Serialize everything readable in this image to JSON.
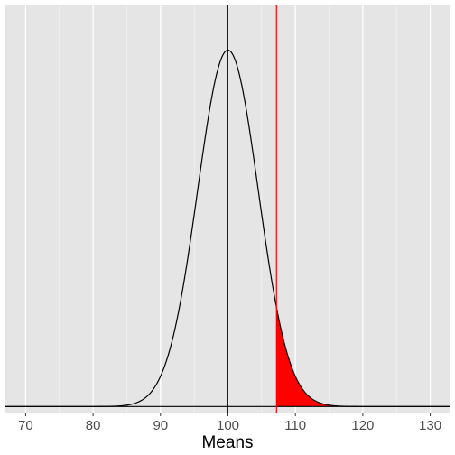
{
  "chart_data": {
    "type": "area",
    "xlabel": "Means",
    "ylabel": "",
    "xlim": [
      67,
      133
    ],
    "ylim": [
      -0.0015,
      0.1
    ],
    "x_ticks": [
      70,
      80,
      90,
      100,
      110,
      120,
      130
    ],
    "x_tick_labels": [
      "70",
      "80",
      "90",
      "100",
      "110",
      "120",
      "130"
    ],
    "grid": true,
    "distribution": {
      "name": "normal",
      "mean": 100,
      "sd": 4.5
    },
    "reference_lines": {
      "vertical_mean": 100,
      "critical_value": 107.2,
      "horizontal_y": 0
    },
    "shaded_region": {
      "from": 107.2,
      "to": 133,
      "color": "#ff0000"
    },
    "colors": {
      "panel": "#e5e5e5",
      "grid_major": "#ffffff",
      "grid_minor": "#f2f2f2",
      "curve": "#000000",
      "critical_line": "#ff0000"
    }
  }
}
